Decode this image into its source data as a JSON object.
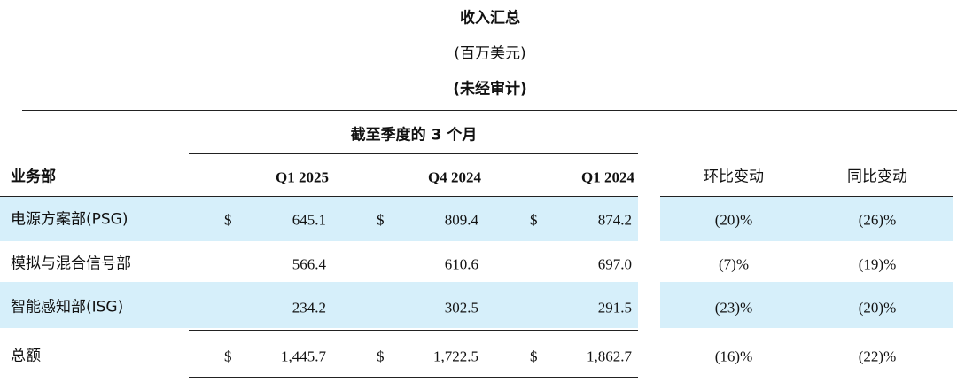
{
  "header": {
    "title": "收入汇总",
    "unit": "(百万美元)",
    "note": "(未经审计)"
  },
  "table": {
    "group_header": "截至季度的 3 个月",
    "columns": [
      "业务部",
      "Q1 2025",
      "Q4 2024",
      "Q1 2024",
      "环比变动",
      "同比变动"
    ],
    "rows": [
      {
        "name": "电源方案部(PSG)",
        "amounts": [
          {
            "sign": "$",
            "value": "645.1"
          },
          {
            "sign": "$",
            "value": "809.4"
          },
          {
            "sign": "$",
            "value": "874.2"
          }
        ],
        "qoq": "(20)%",
        "yoy": "(26)%"
      },
      {
        "name": "模拟与混合信号部",
        "amounts": [
          {
            "value": "566.4"
          },
          {
            "value": "610.6"
          },
          {
            "value": "697.0"
          }
        ],
        "qoq": "(7)%",
        "yoy": "(19)%"
      },
      {
        "name": "智能感知部(ISG)",
        "amounts": [
          {
            "value": "234.2"
          },
          {
            "value": "302.5"
          },
          {
            "value": "291.5"
          }
        ],
        "qoq": "(23)%",
        "yoy": "(20)%"
      },
      {
        "name": "总额",
        "amounts": [
          {
            "sign": "$",
            "value": "1,445.7"
          },
          {
            "sign": "$",
            "value": "1,722.5"
          },
          {
            "sign": "$",
            "value": "1,862.7"
          }
        ],
        "qoq": "(16)%",
        "yoy": "(22)%"
      }
    ]
  }
}
